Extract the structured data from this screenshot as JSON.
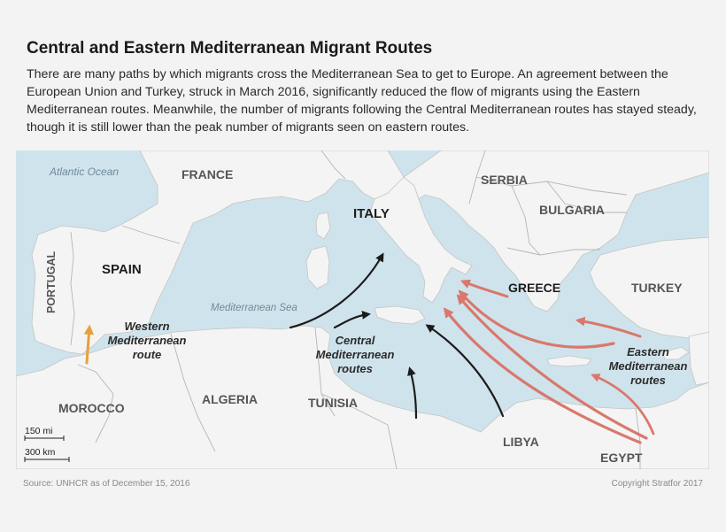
{
  "title": "Central and Eastern Mediterranean Migrant Routes",
  "description": "There are many paths by which migrants cross the Mediterranean Sea to get to Europe. An agreement between the European Union and Turkey, struck in March 2016, significantly reduced the flow of migrants using the Eastern Mediterranean routes. Meanwhile, the number of migrants following the Central Mediterranean routes has stayed steady, though it is still lower than the peak number of migrants seen on eastern routes.",
  "map": {
    "water_labels": {
      "atlantic": "Atlantic Ocean",
      "mediterranean": "Mediterranean Sea"
    },
    "countries": {
      "france": "FRANCE",
      "spain": "SPAIN",
      "portugal": "PORTUGAL",
      "italy": "ITALY",
      "serbia": "SERBIA",
      "bulgaria": "BULGARIA",
      "greece": "GREECE",
      "turkey": "TURKEY",
      "morocco": "MOROCCO",
      "algeria": "ALGERIA",
      "tunisia": "TUNISIA",
      "libya": "LIBYA",
      "egypt": "EGYPT"
    },
    "routes": {
      "western": {
        "line1": "Western",
        "line2": "Mediterranean",
        "line3": "route"
      },
      "central": {
        "line1": "Central",
        "line2": "Mediterranean",
        "line3": "routes"
      },
      "eastern": {
        "line1": "Eastern",
        "line2": "Mediterranean",
        "line3": "routes"
      }
    },
    "scale": {
      "miles": "150 mi",
      "km": "300 km"
    },
    "colors": {
      "sea": "#cfe3ec",
      "land": "#f4f4f4",
      "border": "#b5b5b5",
      "western_route": "#e8a03a",
      "central_route": "#1c1c1c",
      "eastern_route": "#d9786c"
    }
  },
  "footer": {
    "source": "Source: UNHCR as of December 15, 2016",
    "copyright": "Copyright Stratfor 2017"
  }
}
